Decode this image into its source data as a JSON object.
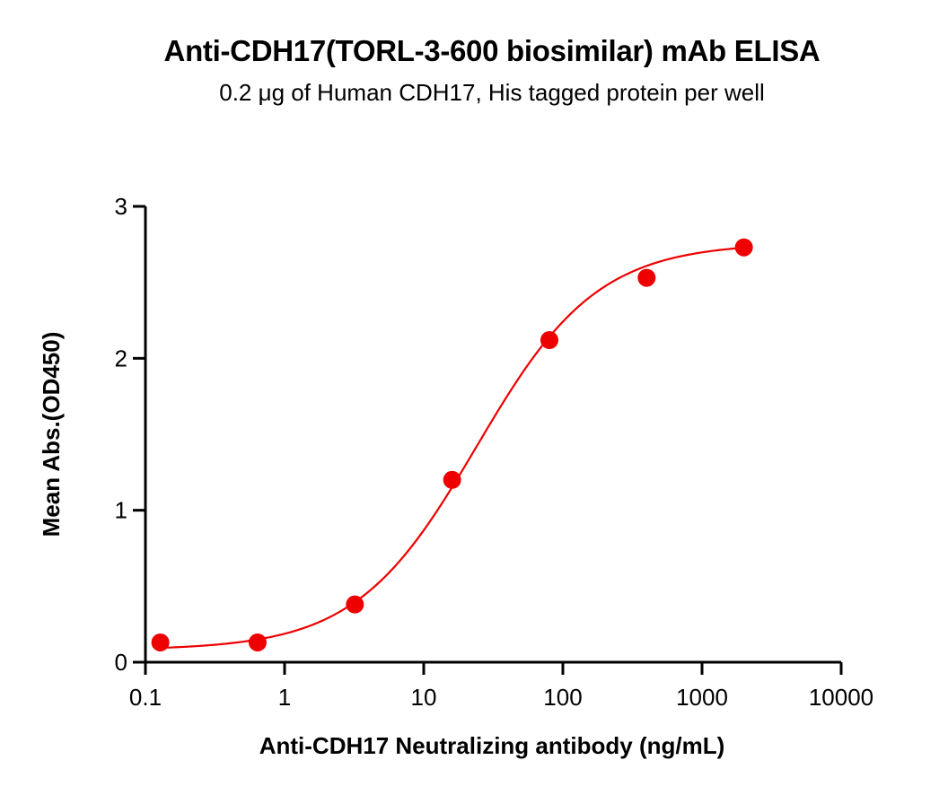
{
  "chart_data": {
    "type": "scatter",
    "title": "Anti-CDH17(TORL-3-600 biosimilar) mAb ELISA",
    "subtitle": "0.2 μg of Human CDH17, His tagged protein per well",
    "xlabel": "Anti-CDH17 Neutralizing antibody (ng/mL)",
    "ylabel": "Mean Abs.(OD450)",
    "xscale": "log",
    "xlim": [
      0.1,
      10000
    ],
    "ylim": [
      0,
      3
    ],
    "x_ticks": [
      "0.1",
      "1",
      "10",
      "100",
      "1000",
      "10000"
    ],
    "y_ticks": [
      "0",
      "1",
      "2",
      "3"
    ],
    "grid": false,
    "legend": null,
    "series": [
      {
        "name": "Anti-CDH17(TORL-3-600 biosimilar) mAb",
        "color": "#ee0000",
        "marker": "circle",
        "fit": "4PL sigmoid",
        "x": [
          0.128,
          0.64,
          3.2,
          16,
          80,
          400,
          2000
        ],
        "y": [
          0.13,
          0.13,
          0.38,
          1.2,
          2.12,
          2.53,
          2.73
        ]
      }
    ]
  }
}
